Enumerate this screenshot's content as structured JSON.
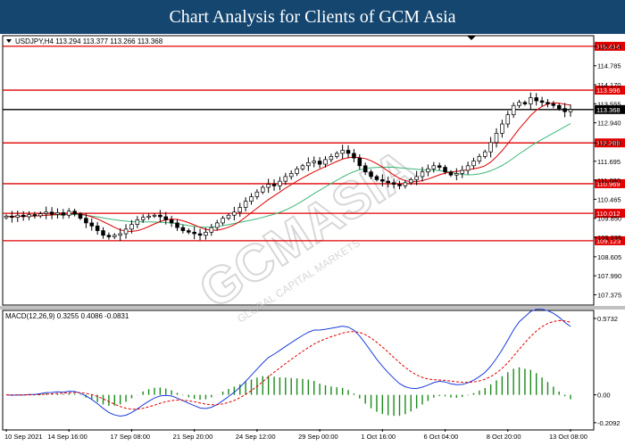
{
  "header": {
    "title": "Chart Analysis for Clients of GCM Asia"
  },
  "watermark": {
    "main": "GCMASIA",
    "sub": "GLOBAL CAPITAL MARKETS"
  },
  "chart_data": [
    {
      "type": "candlestick",
      "info": "USDJPY,H4  113.294 113.377 113.266 113.368",
      "ylim": [
        107.1,
        115.7
      ],
      "y_ticks": [
        115.414,
        114.785,
        114.17,
        113.555,
        112.94,
        112.289,
        111.695,
        111.08,
        110.465,
        109.85,
        109.235,
        108.605,
        107.99,
        107.375
      ],
      "y_tick_labels": [
        "115.414",
        "114.785",
        "114.170",
        "113.555",
        "112.940",
        "112.289",
        "111.695",
        "111.080",
        "110.465",
        "109.850",
        "109.235",
        "108.605",
        "107.990",
        "107.375"
      ],
      "levels": [
        {
          "value": 115.414,
          "label": "115.414",
          "color": "#e00000"
        },
        {
          "value": 113.996,
          "label": "113.996",
          "color": "#e00000"
        },
        {
          "value": 113.368,
          "label": "113.368",
          "color": "#000000"
        },
        {
          "value": 112.289,
          "label": "112.289",
          "color": "#e00000"
        },
        {
          "value": 110.969,
          "label": "110.969",
          "color": "#e00000"
        },
        {
          "value": 110.012,
          "label": "110.012",
          "color": "#e00000"
        },
        {
          "value": 109.123,
          "label": "109.123",
          "color": "#e00000"
        }
      ],
      "closes": [
        109.92,
        109.88,
        109.95,
        109.9,
        109.97,
        109.93,
        110.0,
        110.05,
        109.98,
        110.03,
        109.95,
        110.08,
        109.99,
        109.85,
        109.7,
        109.6,
        109.45,
        109.3,
        109.25,
        109.3,
        109.35,
        109.5,
        109.65,
        109.8,
        109.88,
        109.92,
        109.95,
        109.9,
        109.8,
        109.7,
        109.55,
        109.45,
        109.4,
        109.35,
        109.3,
        109.4,
        109.55,
        109.7,
        109.85,
        109.95,
        110.05,
        110.2,
        110.4,
        110.55,
        110.7,
        110.85,
        110.95,
        110.9,
        111.05,
        111.2,
        111.3,
        111.45,
        111.55,
        111.65,
        111.7,
        111.6,
        111.75,
        111.85,
        111.95,
        112.05,
        111.95,
        111.8,
        111.55,
        111.35,
        111.2,
        111.1,
        111.05,
        111.0,
        110.95,
        110.9,
        111.0,
        111.1,
        111.2,
        111.35,
        111.45,
        111.55,
        111.5,
        111.35,
        111.25,
        111.3,
        111.4,
        111.55,
        111.7,
        111.85,
        112.0,
        112.3,
        112.6,
        112.9,
        113.2,
        113.5,
        113.6,
        113.55,
        113.75,
        113.65,
        113.6,
        113.55,
        113.5,
        113.4,
        113.3,
        113.368
      ],
      "ma_fast_color": "#e00000",
      "ma_slow_color": "#3cb878"
    },
    {
      "type": "line",
      "title": "MACD(12,26,9)  0.3255  0.4086  -0.0831",
      "ylim": [
        -0.25,
        0.62
      ],
      "y_ticks": [
        0.5732,
        0.0,
        -0.2092
      ],
      "y_tick_labels": [
        "0.5732",
        "0.00",
        "-0.2092"
      ],
      "macd_color": "#1a3cdc",
      "signal_color": "#e00000",
      "histogram_color": "#1a8a1a"
    }
  ],
  "x_tick_labels": [
    "10 Sep 2021",
    "14 Sep 16:00",
    "17 Sep 08:00",
    "21 Sep 20:00",
    "24 Sep 12:00",
    "29 Sep 00:00",
    "1 Oct 16:00",
    "6 Oct 04:00",
    "8 Oct 20:00",
    "13 Oct 08:00"
  ]
}
